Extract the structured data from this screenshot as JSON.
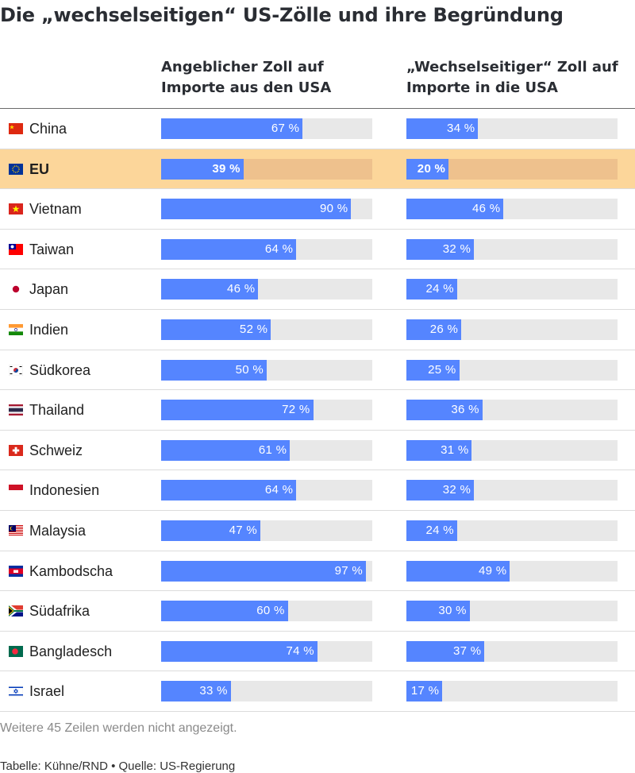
{
  "title": "Die „wechselseitigen“ US-Zölle und ihre Begründung",
  "chart_data": {
    "type": "bar",
    "columns": [
      {
        "name": "Angeblicher Zoll auf Importe aus den USA"
      },
      {
        "name": "„Wechselseitiger“ Zoll auf Importe in die USA"
      }
    ],
    "categories": [
      "China",
      "EU",
      "Vietnam",
      "Taiwan",
      "Japan",
      "Indien",
      "Südkorea",
      "Thailand",
      "Schweiz",
      "Indonesien",
      "Malaysia",
      "Kambodscha",
      "Südafrika",
      "Bangladesch",
      "Israel"
    ],
    "series": [
      {
        "name": "Angeblicher Zoll auf Importe aus den USA",
        "values": [
          67,
          39,
          90,
          64,
          46,
          52,
          50,
          72,
          61,
          64,
          47,
          97,
          60,
          74,
          33
        ]
      },
      {
        "name": "„Wechselseitiger“ Zoll auf Importe in die USA",
        "values": [
          34,
          20,
          46,
          32,
          24,
          26,
          25,
          36,
          31,
          32,
          24,
          49,
          30,
          37,
          17
        ]
      }
    ],
    "unit": " %",
    "xlim": [
      0,
      100
    ],
    "highlight": "EU",
    "bar_color": "#5585ff",
    "track_color": "#e8e8e8",
    "highlight_color": "#fcd69a"
  },
  "flags": [
    "china-flag",
    "eu-flag",
    "vietnam-flag",
    "taiwan-flag",
    "japan-flag",
    "india-flag",
    "south-korea-flag",
    "thailand-flag",
    "switzerland-flag",
    "indonesia-flag",
    "malaysia-flag",
    "cambodia-flag",
    "south-africa-flag",
    "bangladesh-flag",
    "israel-flag"
  ],
  "footer": {
    "note": "Weitere 45 Zeilen werden nicht angezeigt.",
    "credit": "Tabelle: Kühne/RND • Quelle: US-Regierung"
  }
}
